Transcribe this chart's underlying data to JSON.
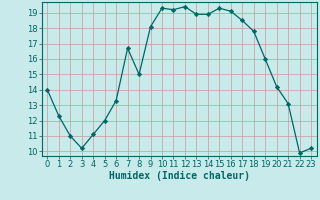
{
  "xlabel": "Humidex (Indice chaleur)",
  "x": [
    0,
    1,
    2,
    3,
    4,
    5,
    6,
    7,
    8,
    9,
    10,
    11,
    12,
    13,
    14,
    15,
    16,
    17,
    18,
    19,
    20,
    21,
    22,
    23
  ],
  "y": [
    14,
    12.3,
    11.0,
    10.2,
    11.1,
    12.0,
    13.3,
    16.7,
    15.0,
    18.1,
    19.3,
    19.2,
    19.4,
    18.9,
    18.9,
    19.3,
    19.1,
    18.5,
    17.8,
    16.0,
    14.2,
    13.1,
    9.9,
    10.2
  ],
  "line_color": "#006666",
  "marker_color": "#006666",
  "bg_color": "#c8eaea",
  "grid_color": "#cc9999",
  "ylim": [
    9.7,
    19.7
  ],
  "xlim": [
    -0.5,
    23.5
  ],
  "yticks": [
    10,
    11,
    12,
    13,
    14,
    15,
    16,
    17,
    18,
    19
  ],
  "xticks": [
    0,
    1,
    2,
    3,
    4,
    5,
    6,
    7,
    8,
    9,
    10,
    11,
    12,
    13,
    14,
    15,
    16,
    17,
    18,
    19,
    20,
    21,
    22,
    23
  ],
  "tick_fontsize": 6.0,
  "label_fontsize": 7.0
}
